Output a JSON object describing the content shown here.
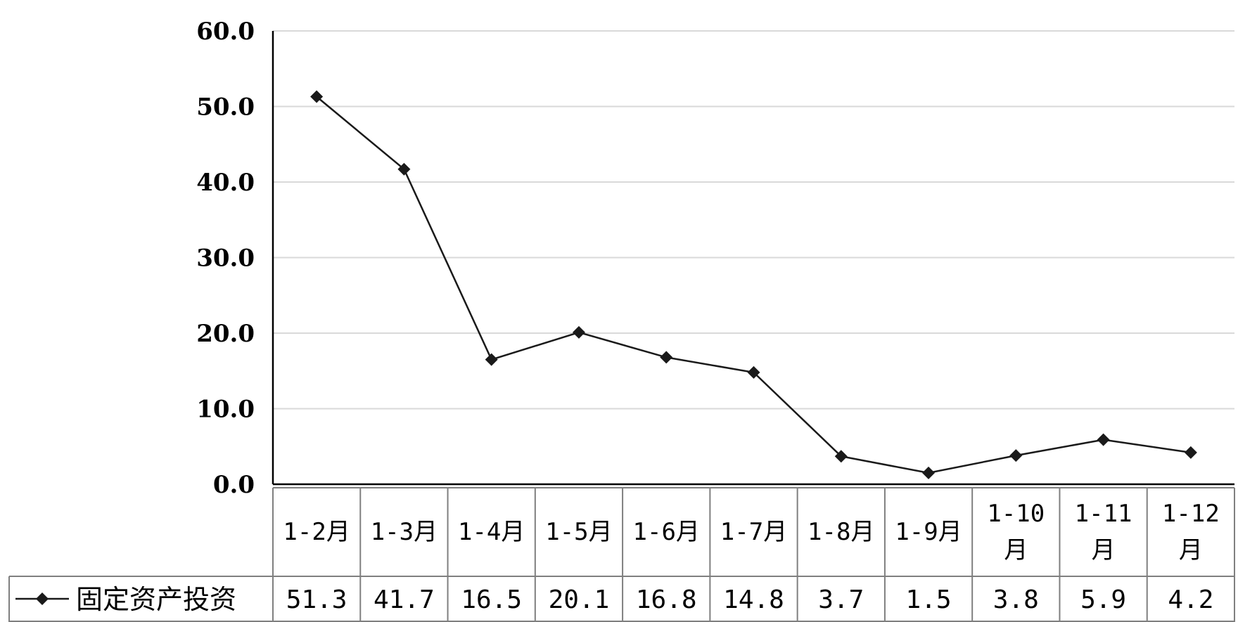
{
  "chart_data": {
    "type": "line",
    "categories": [
      "1-2月",
      "1-3月",
      "1-4月",
      "1-5月",
      "1-6月",
      "1-7月",
      "1-8月",
      "1-9月",
      "1-10月",
      "1-11月",
      "1-12月"
    ],
    "series": [
      {
        "name": "固定资产投资",
        "values": [
          51.3,
          41.7,
          16.5,
          20.1,
          16.8,
          14.8,
          3.7,
          1.5,
          3.8,
          5.9,
          4.2
        ]
      }
    ],
    "value_labels": [
      "51.3",
      "41.7",
      "16.5",
      "20.1",
      "16.8",
      "14.8",
      "3.7",
      "1.5",
      "3.8",
      "5.9",
      "4.2"
    ],
    "yticks": [
      "0.0",
      "10.0",
      "20.0",
      "30.0",
      "40.0",
      "50.0",
      "60.0"
    ],
    "ylim": [
      0,
      60
    ],
    "grid": true,
    "data_table": true,
    "colors": {
      "line": "#1a1a1a",
      "grid": "#d9d9d9",
      "axis": "#000000",
      "table": "#7f7f7f"
    }
  }
}
